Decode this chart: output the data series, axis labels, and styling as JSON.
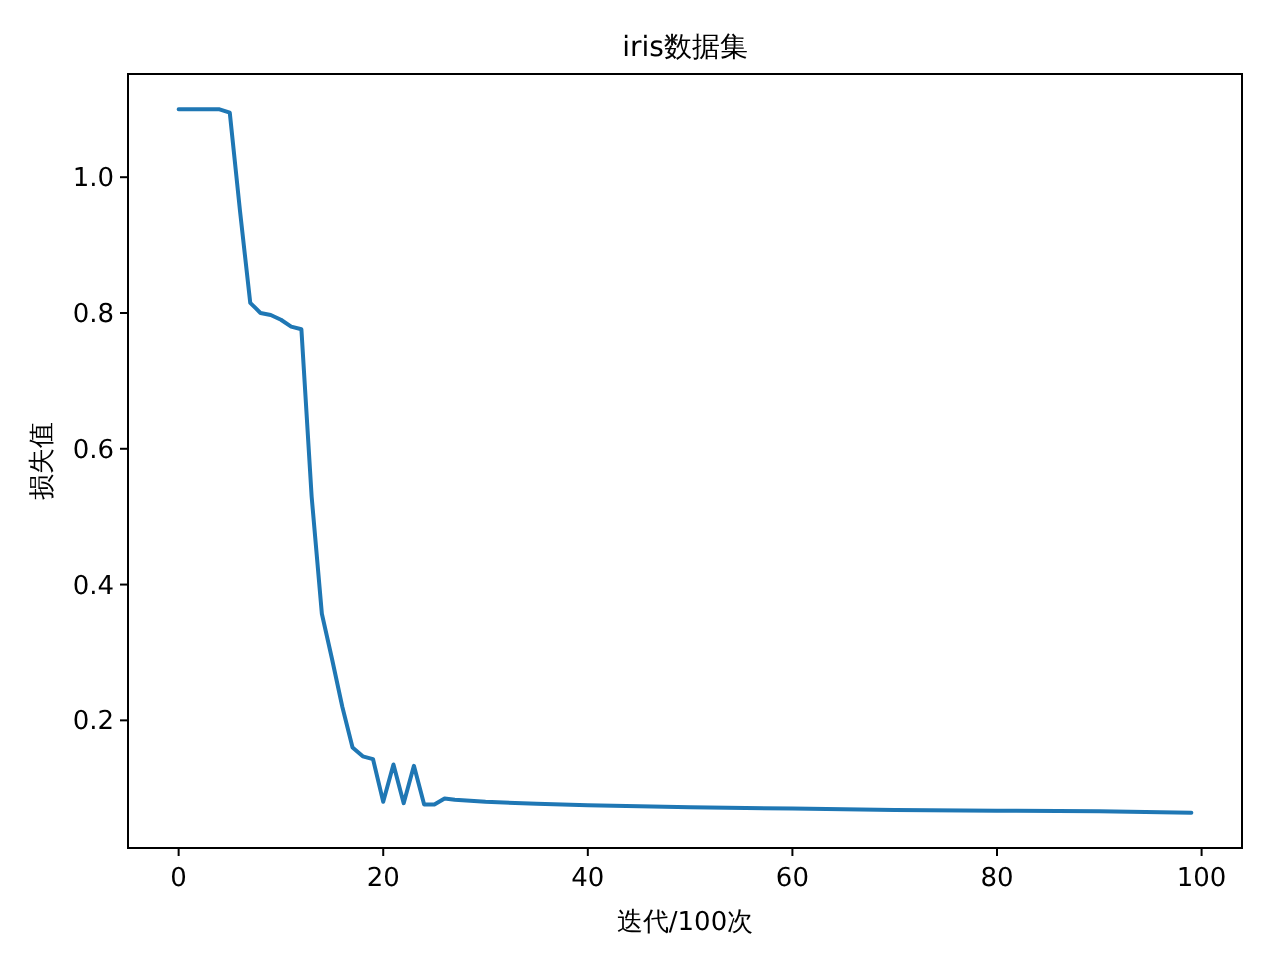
{
  "chart_data": {
    "type": "line",
    "title": "iris数据集",
    "xlabel": "迭代/100次",
    "ylabel": "损失值",
    "x": [
      0,
      1,
      2,
      3,
      4,
      5,
      6,
      7,
      8,
      9,
      10,
      11,
      12,
      13,
      14,
      15,
      16,
      17,
      18,
      19,
      20,
      21,
      22,
      23,
      24,
      25,
      26,
      27,
      30,
      35,
      40,
      50,
      60,
      70,
      80,
      90,
      99
    ],
    "series": [
      {
        "color": "#1f77b4",
        "values": [
          1.1,
          1.1,
          1.1,
          1.1,
          1.1,
          1.095,
          0.95,
          0.815,
          0.8,
          0.797,
          0.79,
          0.78,
          0.776,
          0.53,
          0.357,
          0.29,
          0.22,
          0.16,
          0.147,
          0.143,
          0.08,
          0.135,
          0.078,
          0.133,
          0.076,
          0.076,
          0.085,
          0.083,
          0.08,
          0.077,
          0.075,
          0.072,
          0.07,
          0.068,
          0.067,
          0.066,
          0.064
        ]
      }
    ],
    "xlim": [
      -4.95,
      103.95
    ],
    "ylim": [
      0.012,
      1.152
    ],
    "xticks": [
      0,
      20,
      40,
      60,
      80,
      100
    ],
    "yticks": [
      {
        "value": 0.2,
        "label": "0.2"
      },
      {
        "value": 0.4,
        "label": "0.4"
      },
      {
        "value": 0.6,
        "label": "0.6"
      },
      {
        "value": 0.8,
        "label": "0.8"
      },
      {
        "value": 1.0,
        "label": "1.0"
      }
    ],
    "grid": false,
    "marker": "none",
    "line_style": "solid"
  }
}
